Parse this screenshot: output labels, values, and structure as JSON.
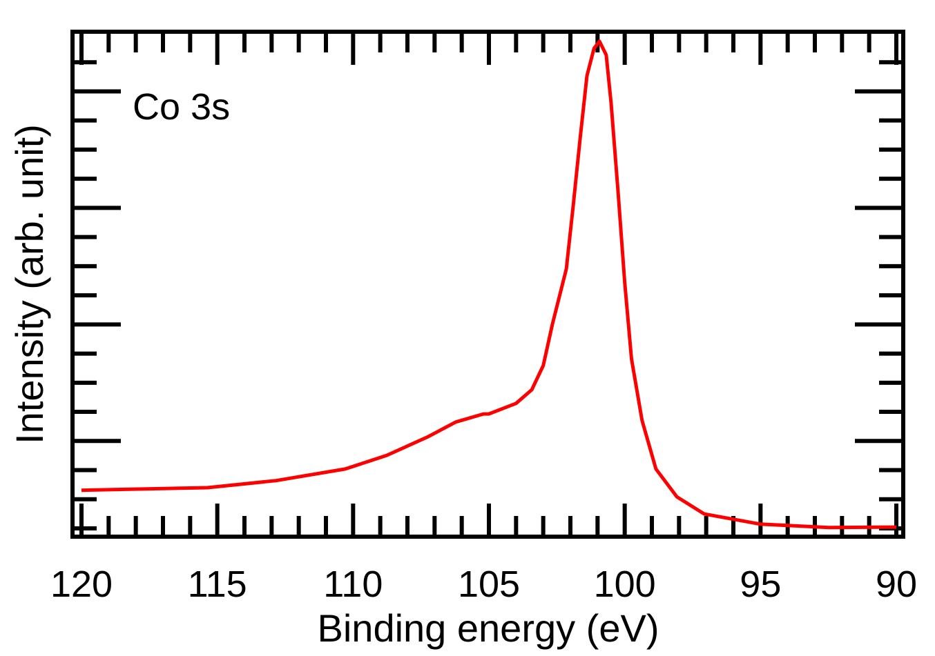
{
  "chart_data": {
    "type": "line",
    "title": "",
    "annotation": "Co 3s",
    "xlabel": "Binding energy (eV)",
    "ylabel": "Intensity (arb. unit)",
    "xlim": [
      120,
      90
    ],
    "ylim": [
      0,
      100
    ],
    "x_reversed": true,
    "x_ticks": [
      120,
      115,
      110,
      105,
      100,
      95,
      90
    ],
    "x_tick_labels": [
      "120",
      "115",
      "110",
      "105",
      "100",
      "95",
      "90"
    ],
    "x_minor_step": 1,
    "y_tick_start": 1.64,
    "y_tick_step": 5.77,
    "y_tick_count": 17,
    "y_major_every": 4,
    "y_major_offset": 3,
    "grid": false,
    "legend": "none",
    "series": [
      {
        "name": "Co 3s",
        "color": "#ff0000",
        "x": [
          120,
          115.37,
          112.83,
          110.29,
          108.76,
          107.24,
          106.22,
          105.2,
          105,
          104,
          103.42,
          103,
          102.66,
          102.15,
          101.9,
          101.64,
          101.39,
          101.13,
          100.93,
          100.68,
          100.5,
          100.24,
          100,
          99.75,
          99.36,
          98.85,
          98.08,
          97.07,
          95.03,
          92.49,
          90
        ],
        "y": [
          9.2,
          9.7,
          11.1,
          13.4,
          16.1,
          19.8,
          22.7,
          24.3,
          24.3,
          26.4,
          29.1,
          33.9,
          42.1,
          53.0,
          65.3,
          79.0,
          91.3,
          96.7,
          98.1,
          95.4,
          85.8,
          68.0,
          50.3,
          35.2,
          23.0,
          13.4,
          7.9,
          4.5,
          2.5,
          1.8,
          1.9
        ]
      }
    ]
  }
}
